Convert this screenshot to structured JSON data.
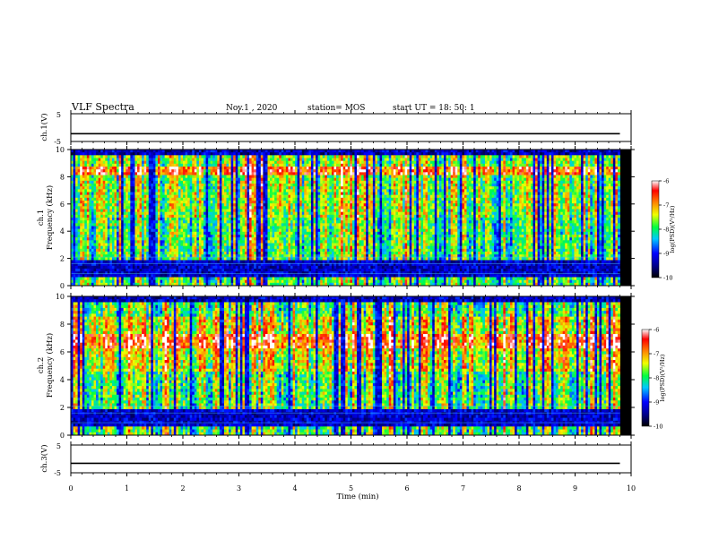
{
  "header": {
    "title": "VLF Spectra",
    "date": "Nov.1 , 2020",
    "station": "station= MOS",
    "start_ut": "start UT = 18: 50: 1"
  },
  "chart_data": [
    {
      "type": "line",
      "name": "ch1-voltage",
      "ylabel": "ch.1(V)",
      "ylim": [
        -5,
        5
      ],
      "yticks": [
        "5",
        "-5"
      ],
      "x": [
        0,
        9.8
      ],
      "y": [
        -2.2,
        -2.2
      ]
    },
    {
      "type": "heatmap",
      "name": "ch1-spectrogram",
      "ylabel_line1": "ch.1",
      "ylabel_line2": "Frequency (kHz)",
      "ylim": [
        0,
        10
      ],
      "yticks": [
        "0",
        "2",
        "4",
        "6",
        "8",
        "10"
      ],
      "xlim": [
        0,
        9.8
      ],
      "colorbar": {
        "label": "log(PSD)(V²/Hz)",
        "ticks": [
          "-6",
          "-7",
          "-8",
          "-9",
          "-10"
        ],
        "range": [
          -10,
          -6
        ]
      },
      "bands_khz": [
        8.2,
        8.8
      ]
    },
    {
      "type": "heatmap",
      "name": "ch2-spectrogram",
      "ylabel_line1": "ch.2",
      "ylabel_line2": "Frequency (kHz)",
      "ylim": [
        0,
        10
      ],
      "yticks": [
        "0",
        "2",
        "4",
        "6",
        "8",
        "10"
      ],
      "xlim": [
        0,
        9.8
      ],
      "colorbar": {
        "label": "log(PSD)(V²/Hz)",
        "ticks": [
          "-6",
          "-7",
          "-8",
          "-9",
          "-10"
        ],
        "range": [
          -10,
          -6
        ]
      },
      "bands_khz": [
        6.3,
        7.3
      ]
    },
    {
      "type": "line",
      "name": "ch3-voltage",
      "ylabel": "ch.3(V)",
      "ylim": [
        -5,
        5
      ],
      "yticks": [
        "5",
        "-5"
      ],
      "x": [
        0,
        9.8
      ],
      "y": [
        -1.6,
        -1.6
      ]
    }
  ],
  "xaxis": {
    "label": "Time (min)",
    "ticks": [
      "0",
      "1",
      "2",
      "3",
      "4",
      "5",
      "6",
      "7",
      "8",
      "9",
      "10"
    ],
    "xlim": [
      0,
      10
    ]
  }
}
